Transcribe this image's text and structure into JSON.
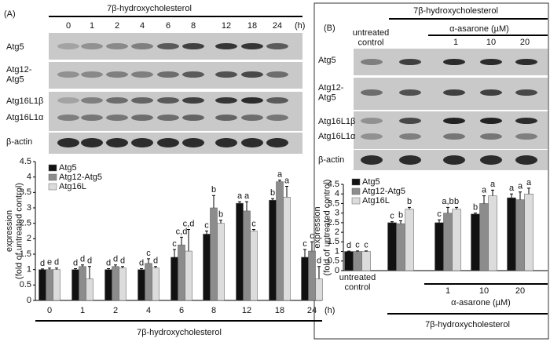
{
  "chart_data": [
    {
      "type": "bar",
      "categories": [
        "0",
        "1",
        "2",
        "4",
        "6",
        "8",
        "12",
        "18",
        "24"
      ],
      "x_label": "7β-hydroxycholesterol",
      "x_unit": "(h)",
      "y_label": "expression (fold of untreated control)",
      "ylim": [
        0,
        4.5
      ],
      "yticks": [
        0,
        0.5,
        1,
        1.5,
        2,
        2.5,
        3,
        3.5,
        4,
        4.5
      ],
      "series": [
        {
          "name": "Atg5",
          "color": "#111111",
          "values": [
            1,
            1,
            1,
            1,
            1.4,
            2.15,
            3.15,
            3.25,
            1.4
          ],
          "errors": [
            0.02,
            0.03,
            0.03,
            0.03,
            0.25,
            0.1,
            0.05,
            0.05,
            0.25
          ],
          "letters": [
            "d",
            "d",
            "d",
            "d",
            "c",
            "c",
            "a",
            "b",
            "c"
          ]
        },
        {
          "name": "Atg12-Atg5",
          "color": "#8c8c8c",
          "values": [
            1,
            1.1,
            1.1,
            1.2,
            1.8,
            3,
            2.9,
            3.85,
            1.6
          ],
          "errors": [
            0.05,
            0.05,
            0.05,
            0.15,
            0.25,
            0.4,
            0.3,
            0.05,
            0.3
          ],
          "letters": [
            "e",
            "d",
            "d",
            "c",
            "c,d",
            "b",
            "a",
            "a",
            "c"
          ]
        },
        {
          "name": "Atg16L",
          "color": "#dcdcdc",
          "values": [
            1,
            0.7,
            1.05,
            1.05,
            1.6,
            2.5,
            2.25,
            3.35,
            0.7
          ],
          "errors": [
            0.05,
            0.4,
            0.05,
            0.05,
            0.7,
            0.1,
            0.05,
            0.35,
            0.4
          ],
          "letters": [
            "d",
            "d",
            "d",
            "d",
            "c,d",
            "b",
            "c",
            "a",
            "d"
          ]
        }
      ]
    },
    {
      "type": "bar",
      "categories": [
        "untreated control",
        null,
        "1",
        "10",
        "20"
      ],
      "treatment_label": "α-asarone (µM)",
      "x_label": "7β-hydroxycholesterol",
      "y_label": "expression (fold of untreated control)",
      "ylim": [
        0,
        4.5
      ],
      "yticks": [
        0,
        0.5,
        1,
        1.5,
        2,
        2.5,
        3,
        3.5,
        4,
        4.5
      ],
      "series": [
        {
          "name": "Atg5",
          "color": "#111111",
          "values": [
            1,
            2.5,
            2.5,
            2.95,
            3.8
          ],
          "errors": [
            0.02,
            0.05,
            0.15,
            0.05,
            0.2
          ],
          "letters": [
            "d",
            "c",
            "c",
            "b",
            "a"
          ]
        },
        {
          "name": "Atg12-Atg5",
          "color": "#8c8c8c",
          "values": [
            1,
            2.45,
            3,
            3.5,
            3.7
          ],
          "errors": [
            0.03,
            0.15,
            0.3,
            0.4,
            0.4
          ],
          "letters": [
            "c",
            "b",
            "a,b",
            "a",
            "a"
          ]
        },
        {
          "name": "Atg16L",
          "color": "#dcdcdc",
          "values": [
            1,
            3.2,
            3.2,
            3.9,
            4
          ],
          "errors": [
            0.03,
            0.1,
            0.1,
            0.3,
            0.3
          ],
          "letters": [
            "c",
            "b",
            "b",
            "a",
            "a"
          ]
        }
      ]
    }
  ],
  "blots": [
    {
      "panel": "(A)",
      "treatment": "7β-hydroxycholesterol",
      "lanes": [
        "0",
        "1",
        "2",
        "4",
        "6",
        "8",
        "12",
        "18",
        "24"
      ],
      "unit": "(h)",
      "rows": [
        "Atg5",
        "Atg12-Atg5",
        "Atg16L1β",
        "Atg16L1α",
        "β-actin"
      ]
    },
    {
      "panel": "(B)",
      "treatment": "7β-hydroxycholesterol",
      "control": "untreated control",
      "cotreatment": "α-asarone (µM)",
      "lanes": [
        "1",
        "10",
        "20"
      ],
      "rows": [
        "Atg5",
        "Atg12-Atg5",
        "Atg16L1β",
        "Atg16L1α",
        "β-actin"
      ]
    }
  ]
}
